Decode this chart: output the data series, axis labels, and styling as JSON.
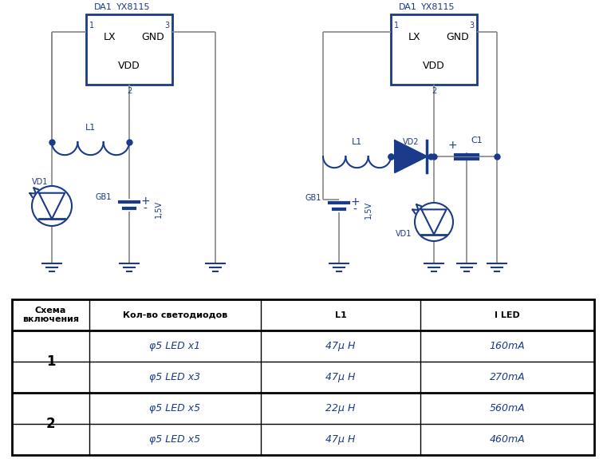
{
  "bg_color": "#ffffff",
  "circuit_color": "#1a3a8a",
  "wire_color": "#888888",
  "table_border_color": "#000000",
  "table_text_color": "#000000",
  "table_blue": "#1a3a8a",
  "fig_width": 7.61,
  "fig_height": 5.75,
  "table_header": [
    "Схема\nвключения",
    "Кол-во светодиодов",
    "L1",
    "I LED"
  ],
  "table_rows": [
    [
      "",
      "φ5 LED x1",
      "47μ H",
      "160mA"
    ],
    [
      "",
      "φ5 LED x3",
      "47μ H",
      "270mA"
    ],
    [
      "",
      "φ5 LED x5",
      "22μ H",
      "560mA"
    ],
    [
      "",
      "φ5 LED x5",
      "47μ H",
      "460mA"
    ]
  ],
  "schema_labels": [
    {
      "text": "1",
      "rows": [
        0,
        1
      ]
    },
    {
      "text": "2",
      "rows": [
        2,
        3
      ]
    }
  ]
}
